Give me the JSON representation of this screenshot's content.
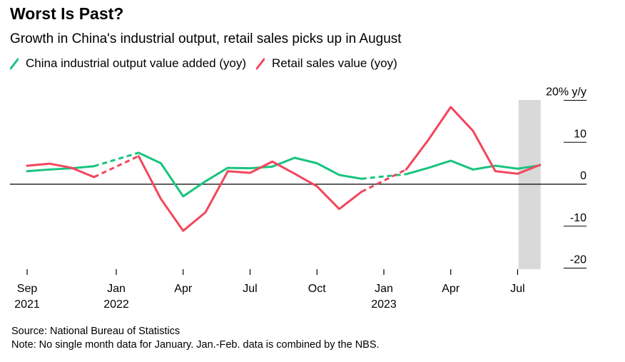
{
  "header": {
    "title": "Worst Is Past?",
    "subtitle": "Growth in China's industrial output, retail sales picks up in August"
  },
  "footer": {
    "source": "Source: National Bureau of Statistics",
    "note": "Note: No single month data for January. Jan.-Feb. data is combined by the NBS."
  },
  "colors": {
    "industrial": "#18c47e",
    "retail": "#f2465c",
    "highlight": "#d9d9d9"
  },
  "chart_data": {
    "type": "line",
    "title": "Worst Is Past?",
    "subtitle": "Growth in China's industrial output, retail sales picks up in August",
    "y_unit_label": "20% y/y",
    "ylim": [
      -20,
      20
    ],
    "yticks": [
      {
        "value": 20,
        "label": "20% y/y"
      },
      {
        "value": 10,
        "label": "10"
      },
      {
        "value": 0,
        "label": "0"
      },
      {
        "value": -10,
        "label": "-10"
      },
      {
        "value": -20,
        "label": "-20"
      }
    ],
    "x": [
      "2021-09",
      "2021-10",
      "2021-11",
      "2021-12",
      "2022-02",
      "2022-03",
      "2022-04",
      "2022-05",
      "2022-06",
      "2022-07",
      "2022-08",
      "2022-09",
      "2022-10",
      "2022-11",
      "2022-12",
      "2023-02",
      "2023-03",
      "2023-04",
      "2023-05",
      "2023-06",
      "2023-07",
      "2023-08"
    ],
    "xticks": [
      {
        "date": "2021-09",
        "line1": "Sep",
        "line2": "2021"
      },
      {
        "date": "2022-01",
        "line1": "Jan",
        "line2": "2022"
      },
      {
        "date": "2022-04",
        "line1": "Apr",
        "line2": ""
      },
      {
        "date": "2022-07",
        "line1": "Jul",
        "line2": ""
      },
      {
        "date": "2022-10",
        "line1": "Oct",
        "line2": ""
      },
      {
        "date": "2023-01",
        "line1": "Jan",
        "line2": "2023"
      },
      {
        "date": "2023-04",
        "line1": "Apr",
        "line2": ""
      },
      {
        "date": "2023-07",
        "line1": "Jul",
        "line2": ""
      }
    ],
    "series": [
      {
        "name": "China industrial output value added (yoy)",
        "color": "#18c47e",
        "values": [
          3.1,
          3.5,
          3.8,
          4.3,
          7.5,
          5.0,
          -2.9,
          0.7,
          3.9,
          3.8,
          4.2,
          6.3,
          5.0,
          2.2,
          1.3,
          2.4,
          3.9,
          5.6,
          3.5,
          4.4,
          3.7,
          4.5
        ]
      },
      {
        "name": "Retail sales value (yoy)",
        "color": "#f2465c",
        "values": [
          4.4,
          4.9,
          3.9,
          1.7,
          6.7,
          -3.5,
          -11.1,
          -6.7,
          3.1,
          2.7,
          5.4,
          2.5,
          -0.5,
          -5.9,
          -1.8,
          3.5,
          10.6,
          18.4,
          12.7,
          3.1,
          2.5,
          4.6
        ]
      }
    ],
    "dashed_gaps": "Dec to Feb segments dashed (no January data)",
    "highlight_period": "2023-08"
  }
}
